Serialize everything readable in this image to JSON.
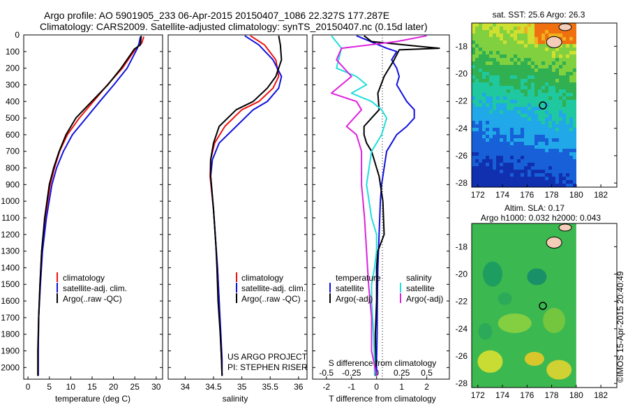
{
  "header": {
    "line1": "Argo profile: AO 5901905_233 06-Apr-2015 20150407_1086 22.327S 177.287E",
    "line2": "Climatology: CARS2009. Satellite-adjusted climatology: synTS_20150407.nc (0.15d later)"
  },
  "colors": {
    "climatology": "#ee1111",
    "satellite": "#1111dd",
    "argo": "#000000",
    "sat_salinity": "#22dddd",
    "argo_salinity": "#dd22dd"
  },
  "depth_ticks": [
    "0",
    "100",
    "200",
    "300",
    "400",
    "500",
    "600",
    "700",
    "800",
    "900",
    "1000",
    "1100",
    "1200",
    "1300",
    "1400",
    "1500",
    "1600",
    "1700",
    "1800",
    "1900",
    "2000"
  ],
  "legend_profiles": [
    "climatology",
    "satellite-adj. clim.",
    "Argo(..raw -QC)"
  ],
  "legend_diff": {
    "temp_header": "temperature",
    "sal_header": "salinity",
    "temp_items": [
      "satellite",
      "Argo(-adj)"
    ],
    "sal_items": [
      "satellite",
      "Argo(-adj)"
    ]
  },
  "project_text": {
    "line1": "US ARGO PROJECT",
    "line2": "PI: STEPHEN RISER"
  },
  "side_text": "©IMOS 15-Apr-2015 20:40:49",
  "chart_data": [
    {
      "type": "line",
      "xlabel": "temperature (deg C)",
      "ylabel": "",
      "xlim": [
        -1,
        31.5
      ],
      "ylim": [
        2070,
        0
      ],
      "xticks": [
        "0",
        "5",
        "10",
        "15",
        "20",
        "25",
        "30"
      ],
      "series": [
        {
          "name": "climatology",
          "color": "#ee1111",
          "x": [
            27.1,
            26.6,
            25.3,
            22.1,
            18.6,
            15.3,
            12.0,
            9.2,
            7.4,
            6.2,
            5.2,
            4.0,
            3.2,
            2.8,
            2.5,
            2.4,
            2.4
          ],
          "y": [
            10,
            50,
            80,
            200,
            300,
            400,
            500,
            600,
            700,
            800,
            900,
            1100,
            1300,
            1500,
            1700,
            1900,
            2050
          ]
        },
        {
          "name": "satellite-adj. clim.",
          "color": "#1111dd",
          "x": [
            26.3,
            26.0,
            25.6,
            23.2,
            20.1,
            16.8,
            13.6,
            10.4,
            8.3,
            6.7,
            5.6,
            4.3,
            3.4,
            2.9,
            2.5,
            2.4,
            2.4
          ],
          "y": [
            10,
            50,
            80,
            200,
            300,
            400,
            500,
            600,
            700,
            800,
            900,
            1100,
            1300,
            1500,
            1700,
            1900,
            2050
          ]
        },
        {
          "name": "Argo(..raw -QC)",
          "color": "#000000",
          "x": [
            26.5,
            26.3,
            24.9,
            21.8,
            18.7,
            14.9,
            11.2,
            8.9,
            7.3,
            6.0,
            5.0,
            3.9,
            3.2,
            2.8,
            2.5,
            2.3,
            2.3
          ],
          "y": [
            5,
            60,
            85,
            200,
            300,
            400,
            500,
            600,
            700,
            800,
            900,
            1100,
            1300,
            1500,
            1700,
            1900,
            2050
          ]
        }
      ]
    },
    {
      "type": "line",
      "xlabel": "salinity",
      "ylabel": "",
      "xlim": [
        33.7,
        36.15
      ],
      "ylim": [
        2070,
        0
      ],
      "xticks": [
        "34",
        "34.5",
        "35",
        "35.5",
        "36"
      ],
      "series": [
        {
          "name": "climatology",
          "color": "#ee1111",
          "x": [
            35.15,
            35.4,
            35.6,
            35.65,
            35.55,
            35.3,
            35.0,
            34.7,
            34.52,
            34.45,
            34.44,
            34.5,
            34.54,
            34.57,
            34.6,
            34.62,
            34.64,
            34.65
          ],
          "y": [
            5,
            60,
            150,
            250,
            320,
            400,
            450,
            550,
            650,
            750,
            850,
            1050,
            1250,
            1400,
            1600,
            1800,
            1950,
            2050
          ]
        },
        {
          "name": "satellite-adj. clim.",
          "color": "#1111dd",
          "x": [
            35.05,
            35.3,
            35.55,
            35.7,
            35.65,
            35.45,
            35.2,
            34.9,
            34.6,
            34.48,
            34.45,
            34.5,
            34.54,
            34.57,
            34.6,
            34.63,
            34.65,
            34.65
          ],
          "y": [
            5,
            60,
            150,
            250,
            320,
            400,
            450,
            550,
            650,
            750,
            850,
            1050,
            1250,
            1400,
            1600,
            1800,
            1950,
            2050
          ]
        },
        {
          "name": "Argo(..raw -QC)",
          "color": "#000000",
          "x": [
            35.65,
            35.68,
            35.7,
            35.6,
            35.45,
            35.2,
            34.9,
            34.6,
            34.5,
            34.45,
            34.45,
            34.5,
            34.54,
            34.56,
            34.58,
            34.62,
            34.64,
            34.65
          ],
          "y": [
            5,
            60,
            150,
            250,
            320,
            400,
            450,
            550,
            650,
            750,
            850,
            1050,
            1250,
            1400,
            1600,
            1800,
            1950,
            2050
          ]
        }
      ]
    },
    {
      "type": "line",
      "xlabel": "T difference from climatology",
      "sublabel": "S difference from climatology",
      "ylabel": "",
      "xlim": [
        -2.55,
        2.9
      ],
      "ylim": [
        2070,
        0
      ],
      "xticks_T": [
        "-2",
        "-1",
        "0",
        "1",
        "2"
      ],
      "xticks_S": [
        "-0.5",
        "-0.25",
        "0",
        "0.25",
        "0.5"
      ],
      "series": [
        {
          "name": "satellite (temperature)",
          "color": "#1111dd",
          "x": [
            -0.8,
            -0.4,
            0.4,
            0.8,
            0.6,
            0.8,
            0.9,
            0.8,
            1.0,
            1.2,
            1.5,
            1.5,
            1.2,
            0.8,
            0.6,
            0.4,
            0.3,
            0.2,
            0.15,
            0.1,
            0.05,
            0.03,
            0.02,
            0.0,
            0.0
          ],
          "y": [
            5,
            30,
            80,
            100,
            150,
            200,
            250,
            300,
            350,
            400,
            450,
            500,
            550,
            600,
            650,
            700,
            800,
            900,
            1000,
            1200,
            1400,
            1600,
            1800,
            1950,
            2050
          ]
        },
        {
          "name": "Argo(-adj) (temperature)",
          "color": "#000000",
          "x": [
            -0.5,
            -0.2,
            1.8,
            2.5,
            0.9,
            0.7,
            0.3,
            0.05,
            0.1,
            -0.2,
            -0.5,
            -0.5,
            -0.4,
            -0.2,
            -0.1,
            0.0,
            0.1,
            0.25,
            0.3,
            0.05,
            0.0,
            0.0,
            -0.05,
            -0.05,
            -0.05
          ],
          "y": [
            5,
            40,
            70,
            80,
            90,
            150,
            250,
            350,
            450,
            500,
            550,
            600,
            650,
            700,
            750,
            800,
            850,
            1000,
            1200,
            1300,
            1400,
            1600,
            1800,
            1950,
            2050
          ]
        },
        {
          "name": "satellite (salinity)",
          "color": "#22dddd",
          "x": [
            -0.45,
            -0.35,
            -0.4,
            -0.2,
            -0.1,
            -0.25,
            -0.05,
            0.05,
            0.1,
            0.05,
            -0.05,
            -0.1,
            -0.05,
            0.0,
            0.0,
            -0.02,
            -0.05,
            -0.05,
            -0.03,
            -0.02,
            -0.02
          ],
          "y": [
            5,
            80,
            200,
            250,
            300,
            350,
            400,
            450,
            500,
            600,
            700,
            900,
            1100,
            1200,
            1300,
            1400,
            1500,
            1600,
            1800,
            1950,
            2050
          ]
        },
        {
          "name": "Argo(-adj) (salinity)",
          "color": "#dd22dd",
          "x": [
            0.5,
            0.2,
            -0.35,
            -0.4,
            -0.25,
            -0.45,
            -0.2,
            -0.15,
            -0.3,
            -0.2,
            -0.15,
            -0.15,
            -0.12,
            -0.1,
            -0.08,
            -0.05,
            -0.05,
            0.0
          ],
          "y": [
            5,
            40,
            80,
            150,
            250,
            350,
            400,
            450,
            550,
            600,
            700,
            900,
            1100,
            1300,
            1500,
            1700,
            1900,
            2050
          ]
        }
      ]
    },
    {
      "type": "heatmap",
      "title": "sat. SST: 25.6 Argo: 26.3",
      "xlim": [
        171.5,
        183.3
      ],
      "ylim": [
        -28.3,
        -16.3
      ],
      "xticks": [
        "172",
        "174",
        "176",
        "178",
        "180",
        "182"
      ],
      "yticks": [
        "-18",
        "-20",
        "-22",
        "-24",
        "-26",
        "-28"
      ],
      "argo_position": {
        "lon": 177.287,
        "lat": -22.327
      }
    },
    {
      "type": "heatmap",
      "title": "Altim. SLA: 0.17",
      "subtitle": "Argo h1000: 0.032 h2000: 0.043",
      "xlim": [
        171.5,
        183.3
      ],
      "ylim": [
        -28.3,
        -16.3
      ],
      "xticks": [
        "172",
        "174",
        "176",
        "178",
        "180",
        "182"
      ],
      "yticks": [
        "-18",
        "-20",
        "-22",
        "-24",
        "-26",
        "-28"
      ],
      "argo_position": {
        "lon": 177.287,
        "lat": -22.327
      }
    }
  ]
}
